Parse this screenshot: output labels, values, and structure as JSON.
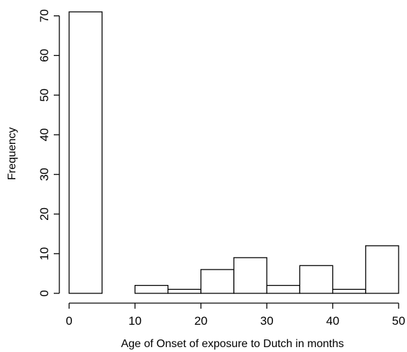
{
  "chart_data": {
    "type": "bar",
    "title": "",
    "xlabel": "Age of Onset of exposure to Dutch in months",
    "ylabel": "Frequency",
    "bins": [
      {
        "start": 0,
        "end": 5,
        "count": 71
      },
      {
        "start": 5,
        "end": 10,
        "count": 0
      },
      {
        "start": 10,
        "end": 15,
        "count": 2
      },
      {
        "start": 15,
        "end": 20,
        "count": 1
      },
      {
        "start": 20,
        "end": 25,
        "count": 6
      },
      {
        "start": 25,
        "end": 30,
        "count": 9
      },
      {
        "start": 30,
        "end": 35,
        "count": 2
      },
      {
        "start": 35,
        "end": 40,
        "count": 7
      },
      {
        "start": 40,
        "end": 45,
        "count": 1
      },
      {
        "start": 45,
        "end": 50,
        "count": 12
      }
    ],
    "xlim": [
      0,
      50
    ],
    "ylim": [
      0,
      71
    ],
    "xticks": [
      0,
      10,
      20,
      30,
      40,
      50
    ],
    "yticks": [
      0,
      10,
      20,
      30,
      40,
      50,
      60,
      70
    ],
    "grid": false,
    "legend": "none",
    "colors": {
      "bar_fill": "#ffffff",
      "stroke": "#000000"
    }
  }
}
